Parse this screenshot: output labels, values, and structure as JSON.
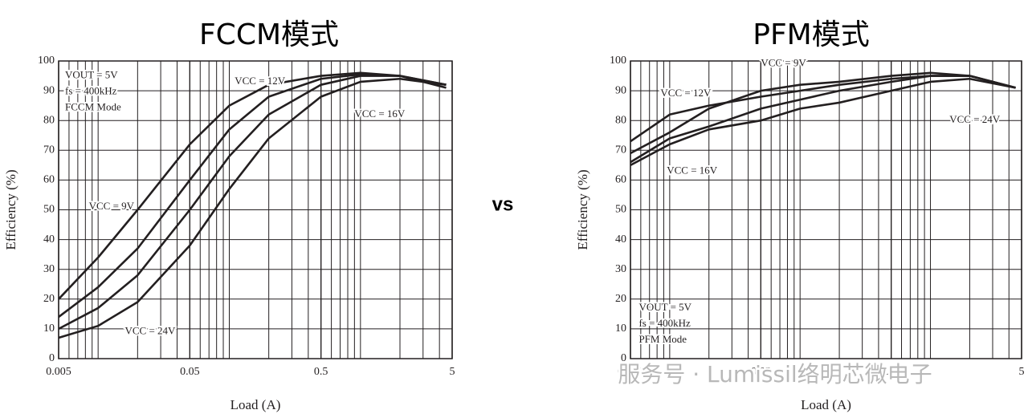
{
  "chart_data": [
    {
      "type": "line",
      "title": "FCCM模式",
      "x_label": "Load (A)",
      "y_label": "Efficiency (%)",
      "x": [
        0.005,
        0.01,
        0.02,
        0.05,
        0.1,
        0.2,
        0.5,
        1,
        2,
        4.5
      ],
      "xscale": "log",
      "xlim": [
        0.005,
        5
      ],
      "xticks": [
        0.005,
        0.05,
        0.5,
        5
      ],
      "ylim": [
        0,
        100
      ],
      "yticks": [
        0,
        10,
        20,
        30,
        40,
        50,
        60,
        70,
        80,
        90,
        100
      ],
      "grid": true,
      "annotations": [
        "VOUT = 5V",
        "fs = 400kHz",
        "FCCM Mode"
      ],
      "series": [
        {
          "name": "VCC = 9V",
          "color": "#231f20",
          "values": [
            20,
            34,
            50,
            72,
            85,
            92,
            95,
            96,
            95,
            91
          ]
        },
        {
          "name": "VCC = 12V",
          "color": "#231f20",
          "values": [
            14,
            24,
            37,
            60,
            77,
            88,
            94,
            95.5,
            95,
            92
          ]
        },
        {
          "name": "VCC = 16V",
          "color": "#231f20",
          "values": [
            10,
            17,
            28,
            50,
            68,
            82,
            92,
            95,
            95,
            92
          ]
        },
        {
          "name": "VCC = 24V",
          "color": "#231f20",
          "values": [
            7,
            11,
            19,
            38,
            57,
            74,
            88,
            93,
            94,
            92
          ]
        }
      ]
    },
    {
      "type": "line",
      "title": "PFM模式",
      "x_label": "Load (A)",
      "y_label": "Efficiency (%)",
      "x": [
        0.005,
        0.01,
        0.02,
        0.05,
        0.1,
        0.2,
        0.5,
        1,
        2,
        4.5
      ],
      "xscale": "log",
      "xlim": [
        0.005,
        5
      ],
      "xticks": [
        0.005,
        0.05,
        0.5,
        5
      ],
      "ylim": [
        0,
        100
      ],
      "yticks": [
        0,
        10,
        20,
        30,
        40,
        50,
        60,
        70,
        80,
        90,
        100
      ],
      "grid": true,
      "annotations": [
        "VOUT = 5V",
        "fs = 400kHz",
        "PFM Mode"
      ],
      "series": [
        {
          "name": "VCC = 9V",
          "color": "#231f20",
          "values": [
            69,
            76,
            84,
            90,
            92,
            93,
            95,
            96,
            95,
            91
          ]
        },
        {
          "name": "VCC = 12V",
          "color": "#231f20",
          "values": [
            73,
            82,
            85,
            88,
            90,
            92,
            94,
            95,
            95,
            91
          ]
        },
        {
          "name": "VCC = 16V",
          "color": "#231f20",
          "values": [
            66,
            74,
            78,
            84,
            87,
            90,
            93,
            95,
            95,
            91
          ]
        },
        {
          "name": "VCC = 24V",
          "color": "#231f20",
          "values": [
            65,
            72,
            77,
            80,
            84,
            86,
            90,
            93,
            94,
            91
          ]
        }
      ]
    }
  ],
  "separator": "vs",
  "watermark": "服务号 · Lumissil络明芯微电子"
}
